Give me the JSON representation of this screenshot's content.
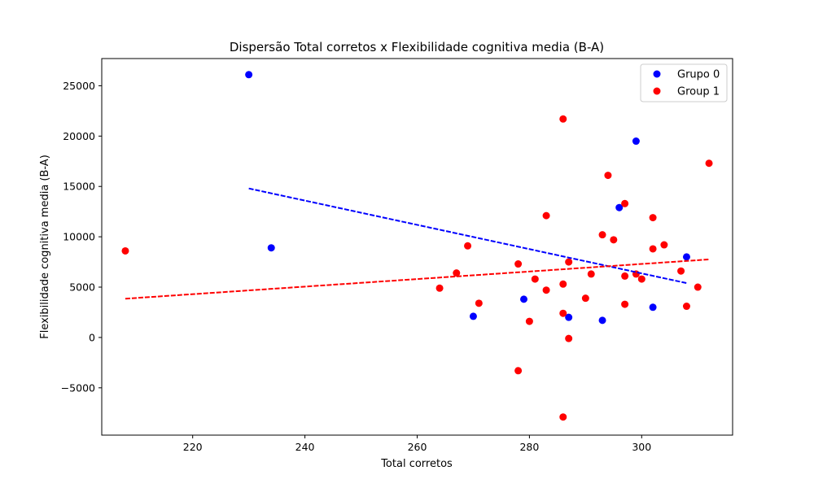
{
  "chart_data": {
    "type": "scatter",
    "title": "Dispersão Total corretos x Flexibilidade cognitiva media (B-A)",
    "xlabel": "Total corretos",
    "ylabel": "Flexibilidade cognitiva media (B-A)",
    "xlim": [
      203.8,
      316.2
    ],
    "ylim": [
      -9700,
      27700
    ],
    "xticks": [
      220,
      240,
      260,
      280,
      300
    ],
    "yticks": [
      -5000,
      0,
      5000,
      10000,
      15000,
      20000,
      25000
    ],
    "grid": false,
    "legend_position": "top-right",
    "series": [
      {
        "name": "Grupo 0",
        "color": "#0000ff",
        "points": [
          [
            230,
            26100
          ],
          [
            234,
            8900
          ],
          [
            270,
            2100
          ],
          [
            279,
            3800
          ],
          [
            287,
            2000
          ],
          [
            293,
            1700
          ],
          [
            296,
            12900
          ],
          [
            299,
            19500
          ],
          [
            302,
            3000
          ],
          [
            308,
            8000
          ]
        ],
        "trend": {
          "x": [
            230,
            308
          ],
          "y": [
            14800,
            5400
          ]
        }
      },
      {
        "name": "Group 1",
        "color": "#ff0000",
        "points": [
          [
            208,
            8600
          ],
          [
            264,
            4900
          ],
          [
            267,
            6400
          ],
          [
            269,
            9100
          ],
          [
            271,
            3400
          ],
          [
            278,
            7300
          ],
          [
            278,
            -3300
          ],
          [
            280,
            1600
          ],
          [
            281,
            5800
          ],
          [
            283,
            12100
          ],
          [
            283,
            4700
          ],
          [
            286,
            21700
          ],
          [
            286,
            5300
          ],
          [
            286,
            2400
          ],
          [
            286,
            -7900
          ],
          [
            287,
            7500
          ],
          [
            287,
            -100
          ],
          [
            290,
            3900
          ],
          [
            291,
            6300
          ],
          [
            293,
            10200
          ],
          [
            294,
            16100
          ],
          [
            295,
            9700
          ],
          [
            297,
            13300
          ],
          [
            297,
            6100
          ],
          [
            297,
            3300
          ],
          [
            299,
            6300
          ],
          [
            300,
            5800
          ],
          [
            302,
            11900
          ],
          [
            302,
            8800
          ],
          [
            304,
            9200
          ],
          [
            307,
            6600
          ],
          [
            308,
            3100
          ],
          [
            310,
            5000
          ],
          [
            312,
            17300
          ]
        ],
        "trend": {
          "x": [
            208,
            312
          ],
          "y": [
            3850,
            7750
          ]
        }
      }
    ]
  }
}
